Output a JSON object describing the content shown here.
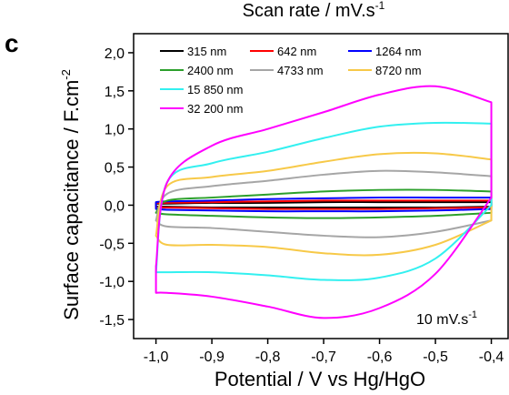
{
  "panel_letter": "c",
  "top_title": "Scan rate / mV.s",
  "top_title_sup": "-1",
  "chart_data": {
    "type": "line",
    "xlabel": "Potential / V vs Hg/HgO",
    "ylabel": "Surface capacitance / F.cm",
    "ylabel_sup": "-2",
    "xlim": [
      -1.04,
      -0.37
    ],
    "ylim": [
      -1.75,
      2.25
    ],
    "x_ticks": [
      -1.0,
      -0.9,
      -0.8,
      -0.7,
      -0.6,
      -0.5,
      -0.4
    ],
    "x_tick_labels": [
      "-1,0",
      "-0,9",
      "-0,8",
      "-0,7",
      "-0,6",
      "-0,5",
      "-0,4"
    ],
    "y_ticks": [
      -1.5,
      -1.0,
      -0.5,
      0.0,
      0.5,
      1.0,
      1.5,
      2.0
    ],
    "y_tick_labels": [
      "-1,5",
      "-1,0",
      "-0,5",
      "0,0",
      "0,5",
      "1,0",
      "1,5",
      "2,0"
    ],
    "annotation": "10 mV.s",
    "annotation_sup": "-1",
    "legend_position": "top-left",
    "series": [
      {
        "name": "315 nm",
        "color": "#000000",
        "upper": [
          0.02,
          0.02,
          0.03,
          0.03,
          0.04,
          0.04,
          0.04,
          0.04
        ],
        "lower": [
          -0.02,
          -0.02,
          -0.03,
          -0.03,
          -0.03,
          -0.03,
          -0.03,
          -0.02
        ],
        "x_upper": [
          -1.0,
          -0.98,
          -0.9,
          -0.8,
          -0.7,
          -0.6,
          -0.5,
          -0.4
        ],
        "x_lower": [
          -1.0,
          -0.98,
          -0.9,
          -0.8,
          -0.7,
          -0.6,
          -0.5,
          -0.4
        ]
      },
      {
        "name": "642 nm",
        "color": "#ff0000",
        "upper": [
          0.03,
          0.03,
          0.04,
          0.05,
          0.06,
          0.06,
          0.06,
          0.06
        ],
        "lower": [
          -0.03,
          -0.03,
          -0.04,
          -0.05,
          -0.05,
          -0.05,
          -0.04,
          -0.03
        ],
        "x_upper": [
          -1.0,
          -0.98,
          -0.9,
          -0.8,
          -0.7,
          -0.6,
          -0.5,
          -0.4
        ],
        "x_lower": [
          -1.0,
          -0.98,
          -0.9,
          -0.8,
          -0.7,
          -0.6,
          -0.5,
          -0.4
        ]
      },
      {
        "name": "1264 nm",
        "color": "#0000ff",
        "upper": [
          0.04,
          0.05,
          0.06,
          0.08,
          0.09,
          0.1,
          0.1,
          0.1
        ],
        "lower": [
          -0.05,
          -0.06,
          -0.07,
          -0.08,
          -0.08,
          -0.08,
          -0.07,
          -0.05
        ],
        "x_upper": [
          -1.0,
          -0.98,
          -0.9,
          -0.8,
          -0.7,
          -0.6,
          -0.5,
          -0.4
        ],
        "x_lower": [
          -1.0,
          -0.98,
          -0.9,
          -0.8,
          -0.7,
          -0.6,
          -0.5,
          -0.4
        ]
      },
      {
        "name": "2400 nm",
        "color": "#2ca02c",
        "upper": [
          -0.1,
          0.06,
          0.1,
          0.14,
          0.18,
          0.2,
          0.2,
          0.18
        ],
        "lower": [
          -0.1,
          -0.12,
          -0.14,
          -0.16,
          -0.17,
          -0.16,
          -0.14,
          -0.1
        ],
        "x_upper": [
          -1.0,
          -0.98,
          -0.9,
          -0.8,
          -0.7,
          -0.6,
          -0.5,
          -0.4
        ],
        "x_lower": [
          -1.0,
          -0.98,
          -0.9,
          -0.8,
          -0.7,
          -0.6,
          -0.5,
          -0.4
        ]
      },
      {
        "name": "4733 nm",
        "color": "#a6a6a6",
        "upper": [
          -0.2,
          0.15,
          0.25,
          0.32,
          0.4,
          0.45,
          0.43,
          0.38
        ],
        "lower": [
          -0.2,
          -0.28,
          -0.3,
          -0.35,
          -0.4,
          -0.42,
          -0.35,
          -0.2
        ],
        "x_upper": [
          -1.0,
          -0.98,
          -0.9,
          -0.8,
          -0.7,
          -0.6,
          -0.5,
          -0.4
        ],
        "x_lower": [
          -1.0,
          -0.98,
          -0.9,
          -0.8,
          -0.7,
          -0.6,
          -0.5,
          -0.4
        ]
      },
      {
        "name": "8720 nm",
        "color": "#f7c948",
        "upper": [
          -0.4,
          0.25,
          0.37,
          0.45,
          0.57,
          0.67,
          0.68,
          0.6
        ],
        "lower": [
          -0.4,
          -0.52,
          -0.52,
          -0.55,
          -0.63,
          -0.65,
          -0.52,
          -0.2
        ],
        "x_upper": [
          -1.0,
          -0.98,
          -0.9,
          -0.8,
          -0.7,
          -0.6,
          -0.5,
          -0.4
        ],
        "x_lower": [
          -1.0,
          -0.98,
          -0.9,
          -0.8,
          -0.7,
          -0.6,
          -0.5,
          -0.4
        ]
      },
      {
        "name": "15 850 nm",
        "color": "#33f0f0",
        "upper": [
          -0.88,
          0.3,
          0.55,
          0.7,
          0.88,
          1.03,
          1.08,
          1.07
        ],
        "lower": [
          -0.88,
          -0.88,
          -0.88,
          -0.92,
          -0.98,
          -0.95,
          -0.7,
          0.0
        ],
        "x_upper": [
          -1.0,
          -0.98,
          -0.9,
          -0.8,
          -0.7,
          -0.6,
          -0.5,
          -0.4
        ],
        "x_lower": [
          -1.0,
          -0.98,
          -0.9,
          -0.8,
          -0.7,
          -0.6,
          -0.5,
          -0.4
        ]
      },
      {
        "name": "32 200 nm",
        "color": "#ff00ff",
        "upper": [
          -0.8,
          0.3,
          0.78,
          1.0,
          1.22,
          1.45,
          1.56,
          1.35
        ],
        "lower": [
          -1.15,
          -1.15,
          -1.2,
          -1.33,
          -1.48,
          -1.35,
          -0.9,
          0.1
        ],
        "x_upper": [
          -1.0,
          -0.98,
          -0.9,
          -0.8,
          -0.7,
          -0.6,
          -0.5,
          -0.4
        ],
        "x_lower": [
          -1.0,
          -0.98,
          -0.9,
          -0.8,
          -0.7,
          -0.6,
          -0.5,
          -0.4
        ]
      }
    ]
  }
}
